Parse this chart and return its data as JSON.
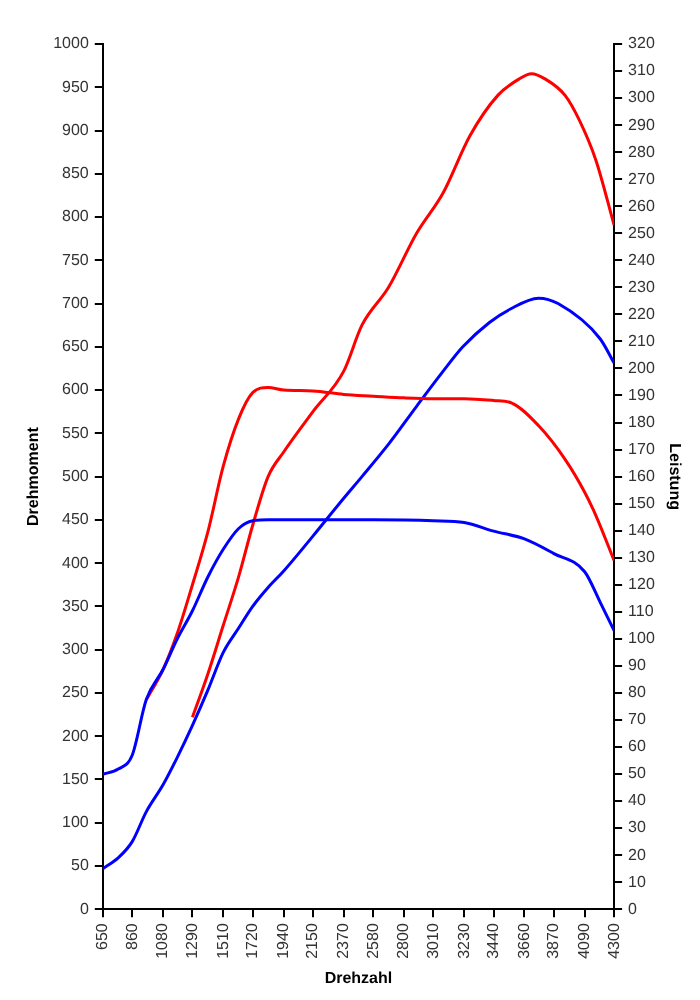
{
  "chart_data": {
    "type": "line",
    "xlabel": "Drehzahl",
    "ylabel": "Drehmoment",
    "y2label": "Leistung",
    "xlim": [
      650,
      4300
    ],
    "xticks": [
      650,
      860,
      1080,
      1290,
      1510,
      1720,
      1940,
      2150,
      2370,
      2580,
      2800,
      3010,
      3230,
      3440,
      3660,
      3870,
      4090,
      4300
    ],
    "ylim": [
      0,
      1000
    ],
    "yticks": [
      0,
      50,
      100,
      150,
      200,
      250,
      300,
      350,
      400,
      450,
      500,
      550,
      600,
      650,
      700,
      750,
      800,
      850,
      900,
      950,
      1000
    ],
    "y2lim": [
      0,
      320
    ],
    "y2ticks": [
      0,
      10,
      20,
      30,
      40,
      50,
      60,
      70,
      80,
      90,
      100,
      110,
      120,
      130,
      140,
      150,
      160,
      170,
      180,
      190,
      200,
      210,
      220,
      230,
      240,
      250,
      260,
      270,
      280,
      290,
      300,
      310,
      320
    ],
    "marker": "none",
    "line_style": "solid",
    "legend": false,
    "series": [
      {
        "color": "#0000ff",
        "x": [
          650,
          760,
          860,
          960,
          1080,
          1180,
          1290,
          1400,
          1510,
          1620,
          1720,
          1830,
          2150,
          2580,
          3010,
          3230,
          3440,
          3660,
          3870,
          4090,
          4200,
          4300
        ],
        "values": [
          156,
          162,
          178,
          242,
          277,
          312,
          345,
          384,
          416,
          440,
          449,
          450,
          450,
          450,
          449,
          447,
          437,
          428,
          411,
          390,
          355,
          322
        ]
      },
      {
        "color": "#ff0000",
        "x": [
          960,
          1080,
          1180,
          1290,
          1400,
          1510,
          1620,
          1720,
          1830,
          1940,
          2150,
          2370,
          2580,
          2800,
          3010,
          3230,
          3440,
          3570,
          3760,
          3950,
          4090,
          4170,
          4300
        ],
        "values": [
          242,
          277,
          318,
          375,
          436,
          512,
          567,
          597,
          603,
          600,
          599,
          595,
          593,
          591,
          590,
          590,
          588,
          585,
          559,
          520,
          482,
          455,
          403
        ]
      },
      {
        "color": "#0000ff",
        "axis": "y2",
        "x": [
          650,
          760,
          860,
          960,
          1080,
          1180,
          1290,
          1400,
          1510,
          1620,
          1720,
          1830,
          1940,
          2150,
          2370,
          2500,
          2690,
          2890,
          3080,
          3220,
          3410,
          3560,
          3760,
          3900,
          4200,
          4300
        ],
        "values": [
          15,
          19,
          25,
          36,
          46,
          56,
          68,
          81,
          95,
          104,
          112,
          119,
          125,
          138,
          152,
          160,
          172,
          186,
          199,
          208,
          217,
          222,
          226,
          224,
          211,
          202
        ]
      },
      {
        "color": "#ff0000",
        "axis": "y2",
        "x": [
          1290,
          1400,
          1510,
          1620,
          1720,
          1830,
          1940,
          2150,
          2370,
          2500,
          2690,
          2890,
          3080,
          3270,
          3470,
          3620,
          3710,
          3810,
          3950,
          4050,
          4170,
          4300
        ],
        "values": [
          71,
          87,
          105,
          123,
          142,
          160,
          169,
          184,
          199,
          216,
          230,
          250,
          265,
          286,
          301,
          307,
          309,
          307,
          301,
          292,
          277,
          253
        ]
      }
    ]
  }
}
